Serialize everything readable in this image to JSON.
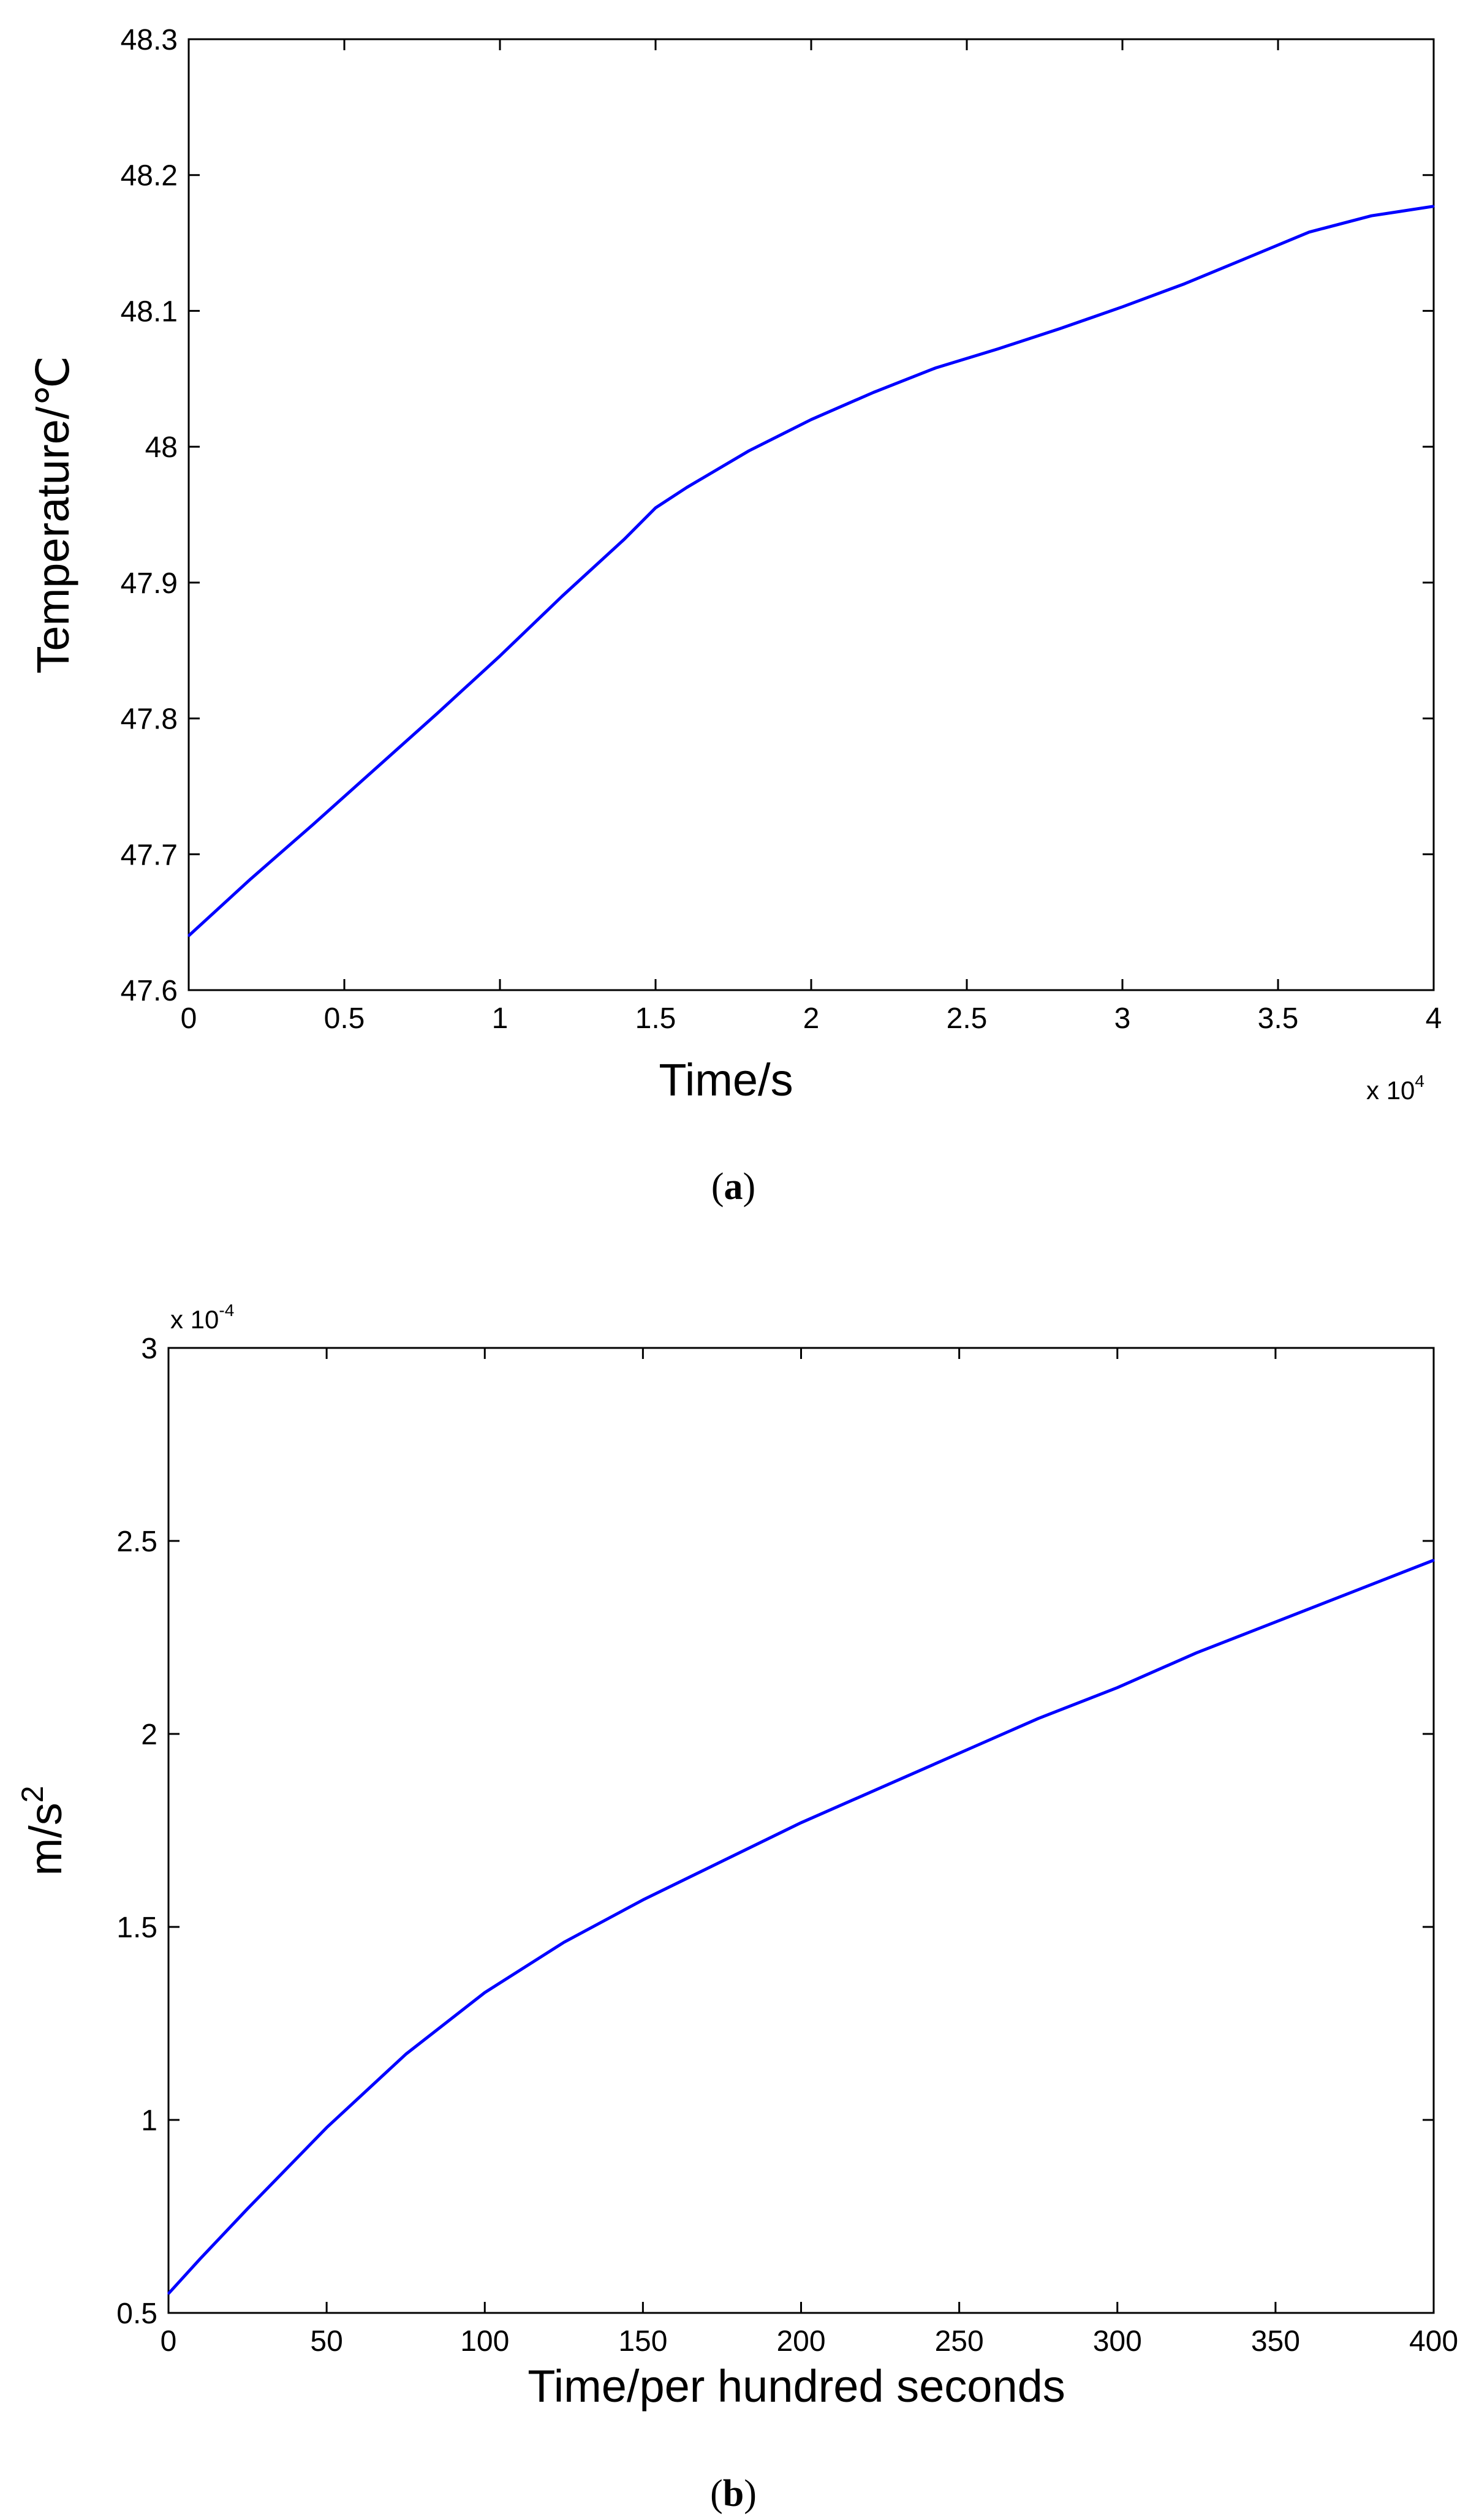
{
  "chart_data": [
    {
      "type": "line",
      "caption_paren_open": "(",
      "caption_letter": "a",
      "caption_paren_close": ")",
      "xlabel": "Time/s",
      "ylabel": "Temperature/℃",
      "xlim": [
        0,
        40000
      ],
      "ylim": [
        47.6,
        48.3
      ],
      "x_ticks": [
        0,
        5000,
        10000,
        15000,
        20000,
        25000,
        30000,
        35000,
        40000
      ],
      "x_tick_labels": [
        "0",
        "0.5",
        "1",
        "1.5",
        "2",
        "2.5",
        "3",
        "3.5",
        "4"
      ],
      "y_ticks": [
        47.6,
        47.7,
        47.8,
        47.9,
        48.0,
        48.1,
        48.2,
        48.3
      ],
      "y_tick_labels": [
        "47.6",
        "47.7",
        "47.8",
        "47.9",
        "48",
        "48.1",
        "48.2",
        "48.3"
      ],
      "x_multiplier_base": "x 10",
      "x_multiplier_exp": "4",
      "grid": false,
      "line_color": "#0000ff",
      "series": [
        {
          "x": [
            0,
            2000,
            4000,
            6000,
            8000,
            10000,
            12000,
            14000,
            15000,
            16000,
            18000,
            20000,
            22000,
            24000,
            26000,
            28000,
            30000,
            32000,
            34000,
            36000,
            38000,
            40000
          ],
          "y": [
            47.64,
            47.682,
            47.722,
            47.763,
            47.804,
            47.846,
            47.89,
            47.932,
            47.955,
            47.97,
            47.997,
            48.02,
            48.04,
            48.058,
            48.072,
            48.087,
            48.103,
            48.12,
            48.139,
            48.158,
            48.17,
            48.177
          ]
        }
      ]
    },
    {
      "type": "line",
      "caption_paren_open": "(",
      "caption_letter": "b",
      "caption_paren_close": ")",
      "xlabel": "Time/per hundred seconds",
      "ylabel_base": "m/s",
      "ylabel_exp": "2",
      "xlim": [
        0,
        400
      ],
      "ylim": [
        0.5,
        3
      ],
      "x_ticks": [
        0,
        50,
        100,
        150,
        200,
        250,
        300,
        350,
        400
      ],
      "x_tick_labels": [
        "0",
        "50",
        "100",
        "150",
        "200",
        "250",
        "300",
        "350",
        "400"
      ],
      "y_ticks": [
        0.5,
        1,
        1.5,
        2,
        2.5,
        3
      ],
      "y_tick_labels": [
        "0.5",
        "1",
        "1.5",
        "2",
        "2.5",
        "3"
      ],
      "y_multiplier_base": "x 10",
      "y_multiplier_exp": "-4",
      "grid": false,
      "line_color": "#0000ff",
      "series": [
        {
          "x": [
            0,
            10,
            25,
            50,
            75,
            100,
            125,
            150,
            175,
            200,
            225,
            250,
            275,
            300,
            325,
            350,
            375,
            400
          ],
          "y": [
            0.55,
            0.64,
            0.77,
            0.98,
            1.17,
            1.33,
            1.46,
            1.57,
            1.67,
            1.77,
            1.86,
            1.95,
            2.04,
            2.12,
            2.21,
            2.29,
            2.37,
            2.45
          ]
        }
      ]
    }
  ]
}
